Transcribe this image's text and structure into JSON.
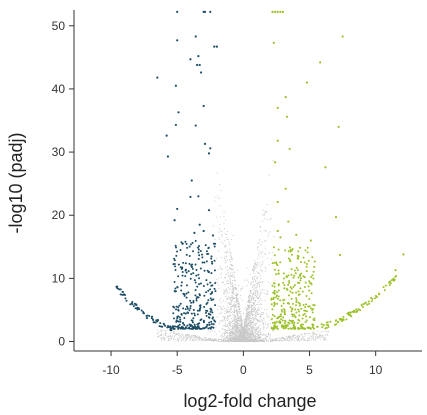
{
  "chart_data": {
    "type": "scatter",
    "title": "",
    "xlabel": "log2-fold change",
    "ylabel": "-log10 (padj)",
    "xlim": [
      -12.8,
      13.5
    ],
    "ylim": [
      -1.5,
      52.5
    ],
    "x_ticks": [
      -10,
      -5,
      0,
      5,
      10
    ],
    "y_ticks": [
      0,
      10,
      20,
      30,
      40,
      50
    ],
    "x_tick_labels": [
      "-10",
      "-5",
      "0",
      "5",
      "10"
    ],
    "y_tick_labels": [
      "0",
      "10",
      "20",
      "30",
      "40",
      "50"
    ],
    "grid": false,
    "legend": "none",
    "colors": {
      "down": "#1d4e66",
      "up": "#9cc22a",
      "not_significant": "#c8c8c8",
      "axis": "#333333"
    },
    "series": [
      {
        "key": "down",
        "points": [
          [
            -3.0,
            52.2
          ],
          [
            -2.9,
            52.2
          ],
          [
            -2.5,
            52.2
          ],
          [
            -5.0,
            52.2
          ],
          [
            -3.6,
            48.3
          ],
          [
            -5.0,
            47.7
          ],
          [
            -2.2,
            46.7
          ],
          [
            -2.0,
            46.7
          ],
          [
            -3.4,
            45.2
          ],
          [
            -4.0,
            44.7
          ],
          [
            -3.5,
            43.8
          ],
          [
            -3.3,
            43.8
          ],
          [
            -6.5,
            41.8
          ],
          [
            -3.2,
            42.6
          ],
          [
            -5.1,
            40.5
          ],
          [
            -4.9,
            36.3
          ],
          [
            -3.0,
            37.3
          ],
          [
            -5.1,
            34.3
          ],
          [
            -3.6,
            34.2
          ],
          [
            -5.8,
            32.6
          ],
          [
            -2.9,
            31.3
          ],
          [
            -2.5,
            30.6
          ],
          [
            -2.6,
            29.8
          ],
          [
            -5.7,
            29.3
          ],
          [
            -3.9,
            25.5
          ],
          [
            -4.0,
            22.9
          ],
          [
            -3.4,
            23.0
          ],
          [
            -5.0,
            21.0
          ],
          [
            -2.6,
            20.8
          ],
          [
            -5.2,
            19.2
          ],
          [
            -3.3,
            18.5
          ],
          [
            -3.0,
            17.5
          ],
          [
            -3.7,
            17.2
          ],
          [
            -2.3,
            16.8
          ],
          [
            -4.6,
            15.5
          ]
        ],
        "band": {
          "x_min": -5.3,
          "x_max": -2.1,
          "y_min": 2.0,
          "y_max": 16.0,
          "count": 300
        },
        "wing": {
          "side": -1,
          "x_from": 5.3,
          "x_to": 9.6,
          "y_at_start": 2.2,
          "y_at_end": 8.6,
          "count": 70
        }
      },
      {
        "key": "up",
        "points": [
          [
            2.2,
            52.2
          ],
          [
            2.4,
            52.2
          ],
          [
            2.6,
            52.2
          ],
          [
            2.8,
            52.2
          ],
          [
            3.0,
            52.2
          ],
          [
            7.5,
            48.3
          ],
          [
            2.3,
            47.3
          ],
          [
            5.8,
            44.2
          ],
          [
            4.8,
            41.0
          ],
          [
            3.2,
            38.7
          ],
          [
            2.6,
            37.0
          ],
          [
            3.3,
            35.6
          ],
          [
            7.2,
            34.0
          ],
          [
            2.6,
            31.8
          ],
          [
            3.5,
            30.5
          ],
          [
            2.4,
            28.4
          ],
          [
            6.2,
            27.6
          ],
          [
            3.2,
            24.2
          ],
          [
            2.6,
            22.1
          ],
          [
            7.0,
            19.7
          ],
          [
            3.4,
            19.0
          ],
          [
            2.6,
            17.5
          ],
          [
            4.0,
            16.9
          ],
          [
            5.1,
            16.0
          ],
          [
            2.8,
            16.5
          ],
          [
            7.3,
            13.7
          ],
          [
            12.1,
            13.8
          ],
          [
            11.5,
            11.3
          ]
        ],
        "band": {
          "x_min": 2.1,
          "x_max": 5.4,
          "y_min": 2.0,
          "y_max": 15.0,
          "count": 300
        },
        "wing": {
          "side": 1,
          "x_from": 5.4,
          "x_to": 11.6,
          "y_at_start": 2.2,
          "y_at_end": 10.2,
          "count": 85
        }
      },
      {
        "key": "not_significant",
        "cloud": {
          "x_range": [
            -2.0,
            2.0
          ],
          "y_range": [
            0.0,
            30.0
          ],
          "count": 2600
        }
      }
    ]
  }
}
